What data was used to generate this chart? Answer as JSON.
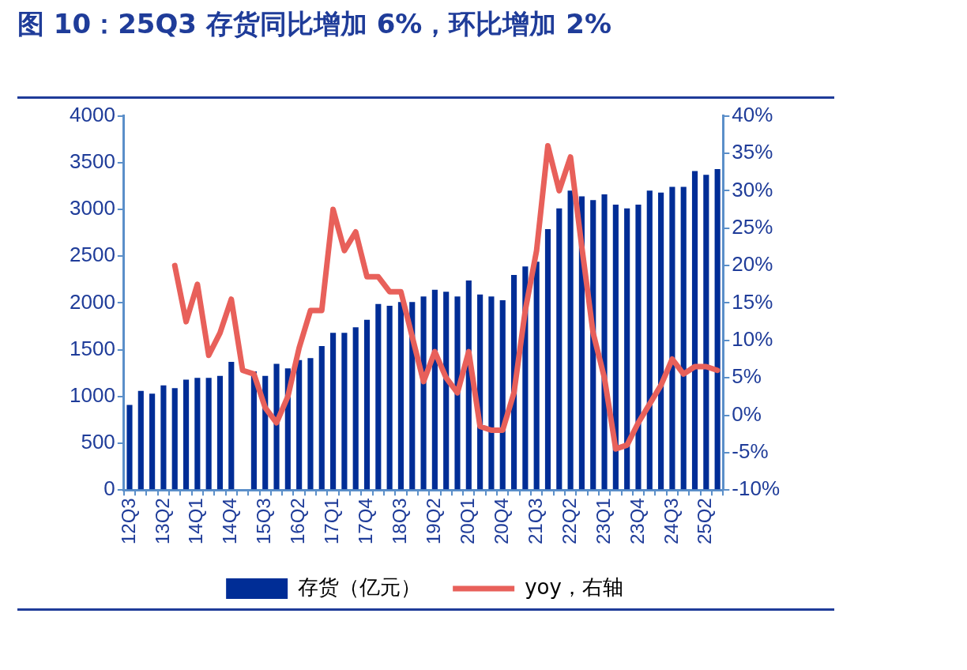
{
  "chart_data": {
    "type": "bar",
    "title": "图 10：25Q3 存货同比增加 6%，环比增加 2%",
    "categories": [
      "12Q3",
      null,
      null,
      "13Q2",
      null,
      null,
      "14Q1",
      null,
      null,
      "14Q4",
      null,
      null,
      "15Q3",
      null,
      null,
      "16Q2",
      null,
      null,
      "17Q1",
      null,
      null,
      "17Q4",
      null,
      null,
      "18Q3",
      null,
      null,
      "19Q2",
      null,
      null,
      "20Q1",
      null,
      null,
      "20Q4",
      null,
      null,
      "21Q3",
      null,
      null,
      "22Q2",
      null,
      null,
      "23Q1",
      null,
      null,
      "23Q4",
      null,
      null,
      "24Q3",
      null,
      null,
      "25Q2",
      null
    ],
    "series": [
      {
        "name": "存货（亿元）",
        "color": "#002d96",
        "values": [
          910,
          1060,
          1030,
          1120,
          1090,
          1180,
          1200,
          1200,
          1220,
          1370,
          null,
          1270,
          1220,
          1350,
          1300,
          1390,
          1410,
          1540,
          1680,
          1680,
          1740,
          1820,
          1990,
          1970,
          2010,
          2010,
          2070,
          2140,
          2120,
          2070,
          2240,
          2090,
          2070,
          2030,
          2300,
          2390,
          2440,
          2790,
          3010,
          3200,
          3140,
          3100,
          3160,
          3050,
          3010,
          3050,
          3200,
          3180,
          3240,
          3240,
          3410,
          3370,
          3430
        ]
      },
      {
        "name": "yoy，右轴",
        "type": "line",
        "axis": "y2",
        "color": "#e8605a",
        "values": [
          null,
          null,
          null,
          null,
          20,
          12.5,
          17.5,
          8,
          11,
          15.5,
          6,
          5.5,
          1,
          -1,
          2.5,
          9,
          14,
          14,
          27.5,
          22,
          24.5,
          18.5,
          18.5,
          16.5,
          16.5,
          10.5,
          4.5,
          8.5,
          5,
          3,
          8.5,
          -1.5,
          -2,
          -2,
          3,
          14,
          22,
          36,
          30,
          34.5,
          22.5,
          11,
          5,
          -4.5,
          -4,
          -1,
          1.5,
          4,
          7.5,
          5.5,
          6.5,
          6.5,
          6
        ]
      }
    ],
    "ylim": [
      0,
      4000
    ],
    "yticks": [
      0,
      500,
      1000,
      1500,
      2000,
      2500,
      3000,
      3500,
      4000
    ],
    "y2lim": [
      -10,
      40
    ],
    "y2ticks": [
      {
        "value": -10,
        "label": "-10%"
      },
      {
        "value": -5,
        "label": "-5%"
      },
      {
        "value": 0,
        "label": "0%"
      },
      {
        "value": 5,
        "label": "5%"
      },
      {
        "value": 10,
        "label": "10%"
      },
      {
        "value": 15,
        "label": "15%"
      },
      {
        "value": 20,
        "label": "20%"
      },
      {
        "value": 25,
        "label": "25%"
      },
      {
        "value": 30,
        "label": "30%"
      },
      {
        "value": 35,
        "label": "35%"
      },
      {
        "value": 40,
        "label": "40%"
      }
    ],
    "legend": "bottom",
    "grid": false,
    "marker": "none",
    "line_style": "solid"
  }
}
